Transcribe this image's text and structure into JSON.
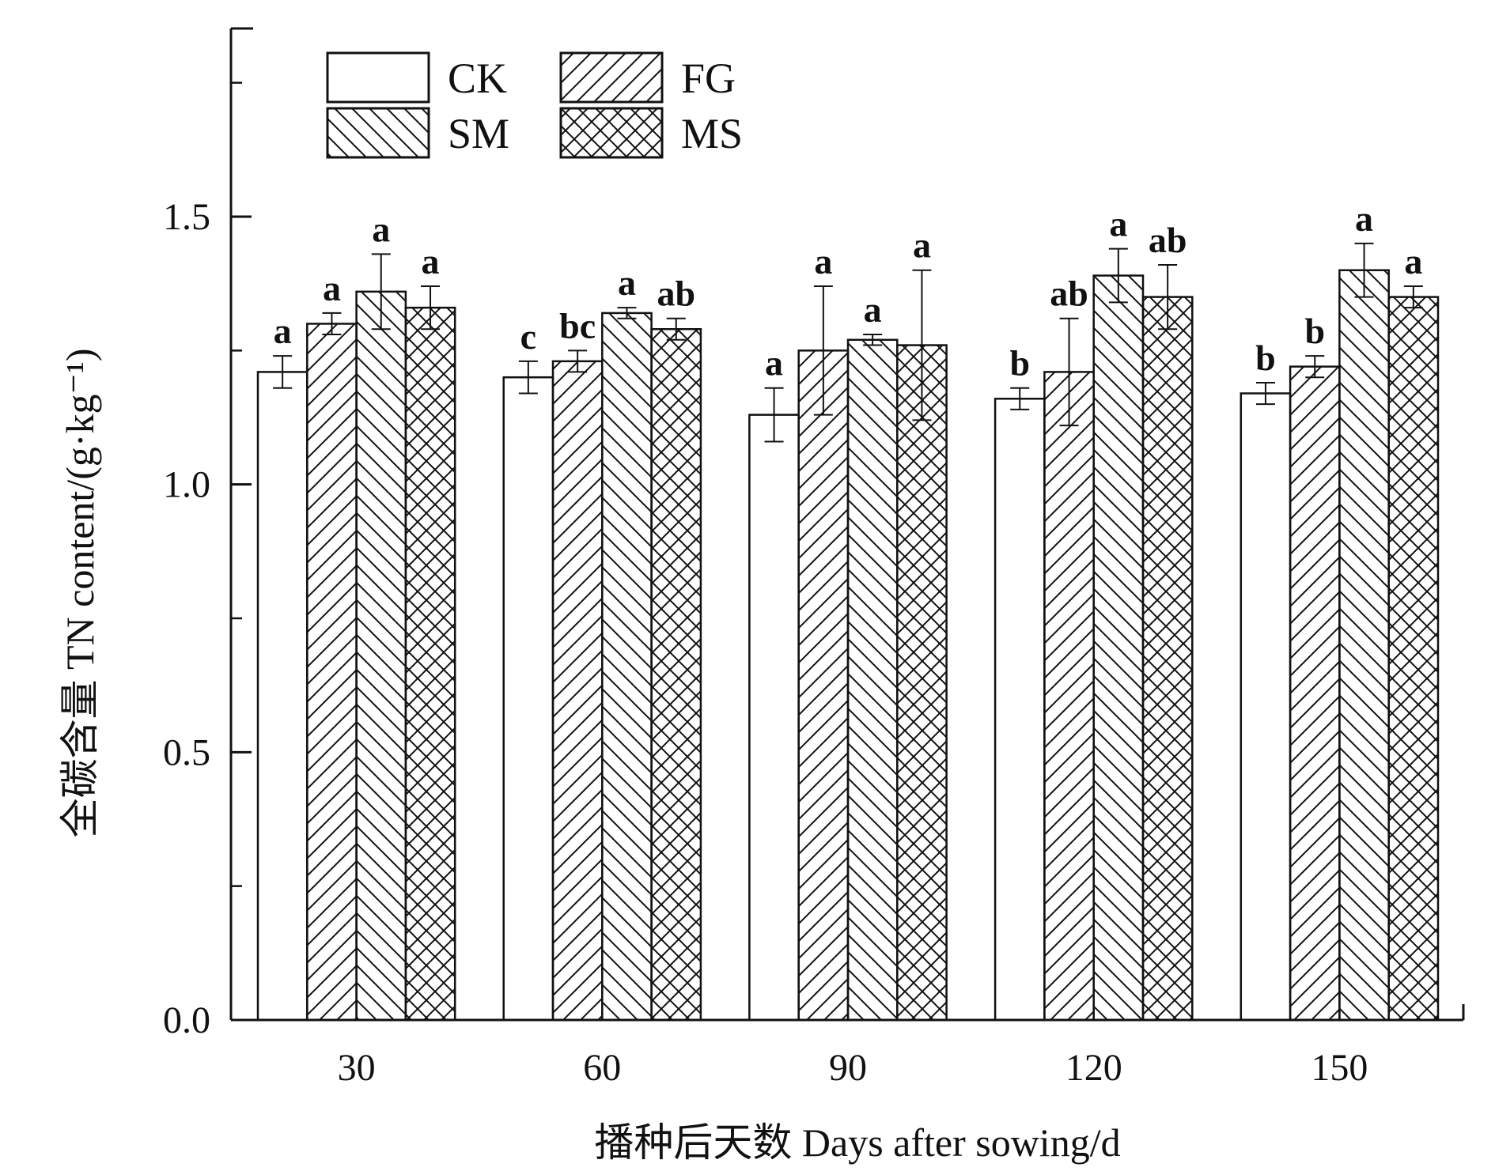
{
  "chart_data": {
    "type": "bar",
    "title": "",
    "xlabel": "播种后天数 Days after sowing/d",
    "ylabel": "全碳含量 TN content/(g·kg⁻¹)",
    "ylim": [
      0,
      1.85
    ],
    "yticks": [
      "0.0",
      "0.5",
      "1.0",
      "1.5"
    ],
    "grid": false,
    "legend_position": "top-left",
    "categories": [
      "30",
      "60",
      "90",
      "120",
      "150"
    ],
    "series": [
      {
        "name": "CK",
        "pattern": "none",
        "values": [
          1.21,
          1.2,
          1.13,
          1.16,
          1.17
        ],
        "errors": [
          0.03,
          0.03,
          0.05,
          0.02,
          0.02
        ],
        "labels": [
          "a",
          "c",
          "a",
          "b",
          "b"
        ]
      },
      {
        "name": "FG",
        "pattern": "forward-diagonal",
        "values": [
          1.3,
          1.23,
          1.25,
          1.21,
          1.22
        ],
        "errors": [
          0.02,
          0.02,
          0.12,
          0.1,
          0.02
        ],
        "labels": [
          "a",
          "bc",
          "a",
          "ab",
          "b"
        ]
      },
      {
        "name": "SM",
        "pattern": "back-diagonal",
        "values": [
          1.36,
          1.32,
          1.27,
          1.39,
          1.4
        ],
        "errors": [
          0.07,
          0.01,
          0.01,
          0.05,
          0.05
        ],
        "labels": [
          "a",
          "a",
          "a",
          "a",
          "a"
        ]
      },
      {
        "name": "MS",
        "pattern": "crosshatch",
        "values": [
          1.33,
          1.29,
          1.26,
          1.35,
          1.35
        ],
        "errors": [
          0.04,
          0.02,
          0.14,
          0.06,
          0.02
        ],
        "labels": [
          "a",
          "ab",
          "a",
          "ab",
          "a"
        ]
      }
    ]
  }
}
